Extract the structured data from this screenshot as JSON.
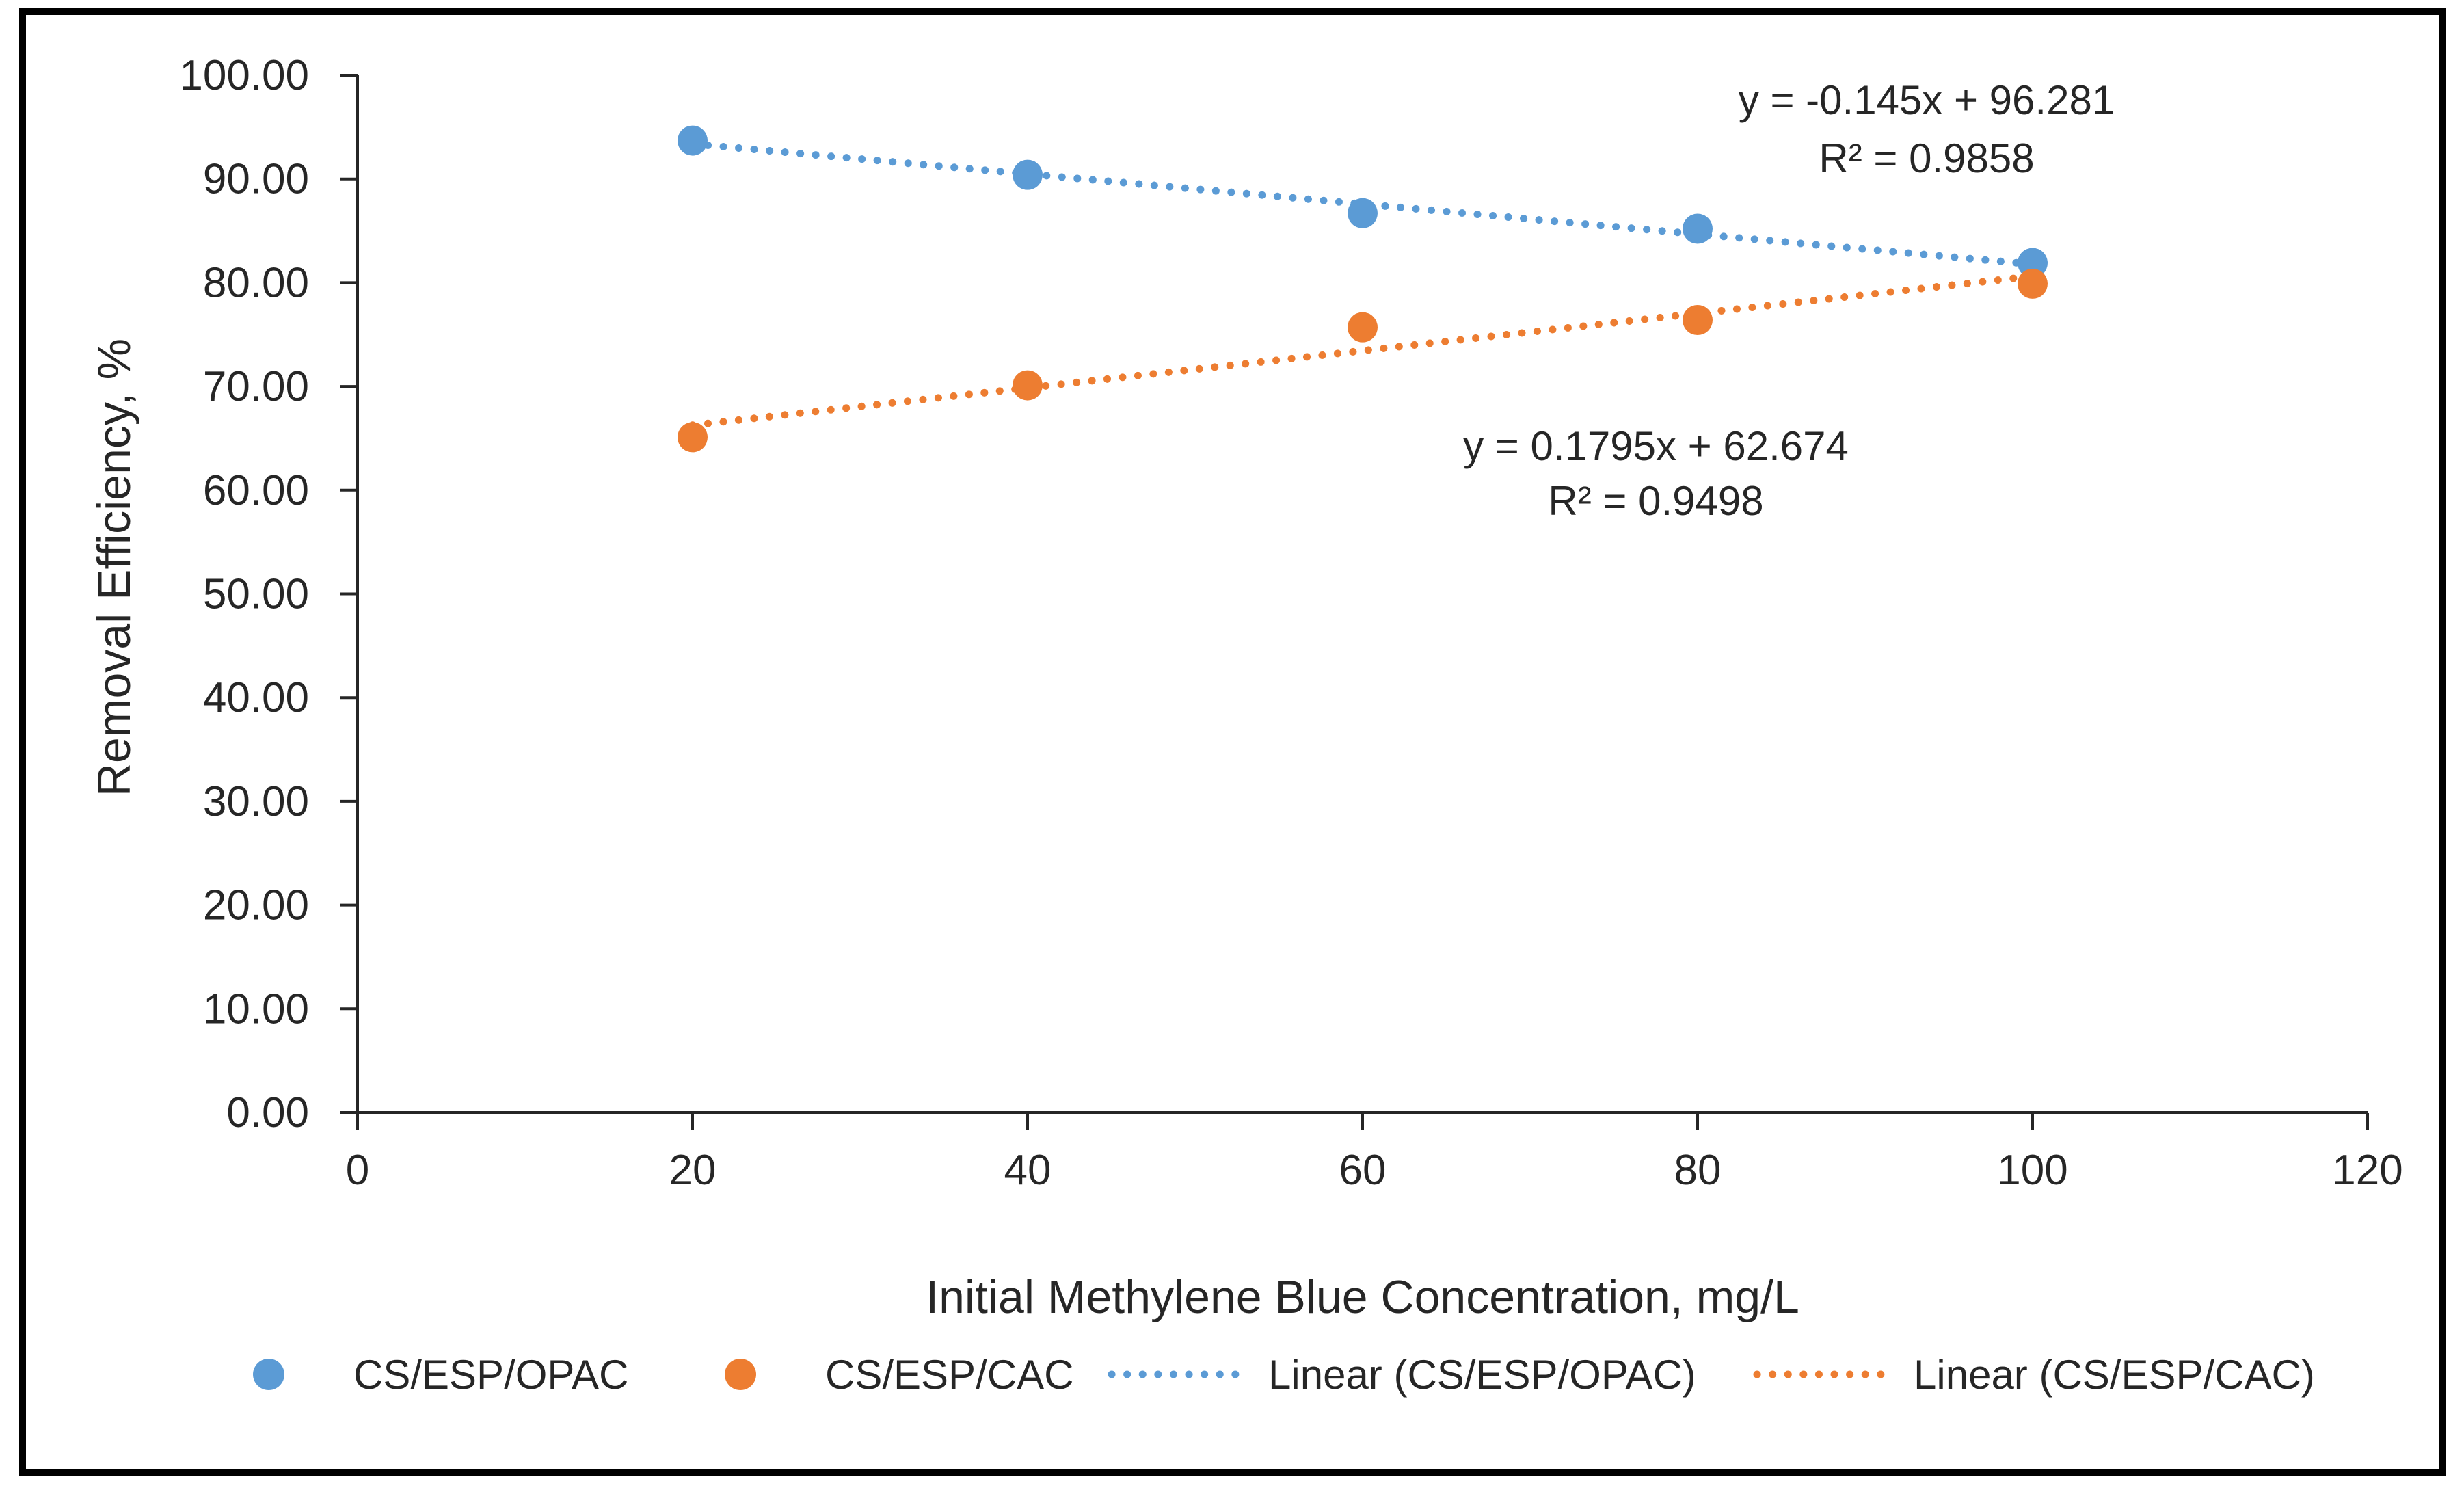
{
  "chart_data": {
    "type": "scatter",
    "title": "",
    "xlabel": "Initial Methylene Blue Concentration, mg/L",
    "ylabel": "Removal Efficiency, %",
    "xlim": [
      0,
      120
    ],
    "ylim": [
      0,
      100
    ],
    "x_ticks": [
      0,
      20,
      40,
      60,
      80,
      100,
      120
    ],
    "y_ticks": [
      0,
      10,
      20,
      30,
      40,
      50,
      60,
      70,
      80,
      90,
      100
    ],
    "y_tick_decimals": 2,
    "grid": false,
    "legend_position": "bottom",
    "series": [
      {
        "name": "CS/ESP/OPAC",
        "color": "#5B9BD5",
        "marker": "circle",
        "x": [
          20,
          40,
          60,
          80,
          100
        ],
        "y": [
          93.7,
          90.4,
          86.7,
          85.2,
          81.9
        ],
        "trendline": {
          "style": "dotted",
          "slope": -0.145,
          "intercept": 96.281,
          "r2": 0.9858,
          "x_range": [
            20,
            100
          ],
          "equation_label": "y = -0.145x + 96.281",
          "r2_label": "R² = 0.9858"
        }
      },
      {
        "name": "CS/ESP/CAC",
        "color": "#ED7D31",
        "marker": "circle",
        "x": [
          20,
          40,
          60,
          80,
          100
        ],
        "y": [
          65.1,
          70.1,
          75.7,
          76.4,
          79.9
        ],
        "trendline": {
          "style": "dotted",
          "slope": 0.1795,
          "intercept": 62.674,
          "r2": 0.9498,
          "x_range": [
            20,
            100
          ],
          "equation_label": "y = 0.1795x + 62.674",
          "r2_label": "R² = 0.9498"
        }
      }
    ],
    "legend": [
      "CS/ESP/OPAC",
      "CS/ESP/CAC",
      "Linear (CS/ESP/OPAC)",
      "Linear (CS/ESP/CAC)"
    ]
  },
  "colors": {
    "text": "#262626",
    "axis": "#262626",
    "frame": "#000000",
    "background": "#ffffff"
  }
}
